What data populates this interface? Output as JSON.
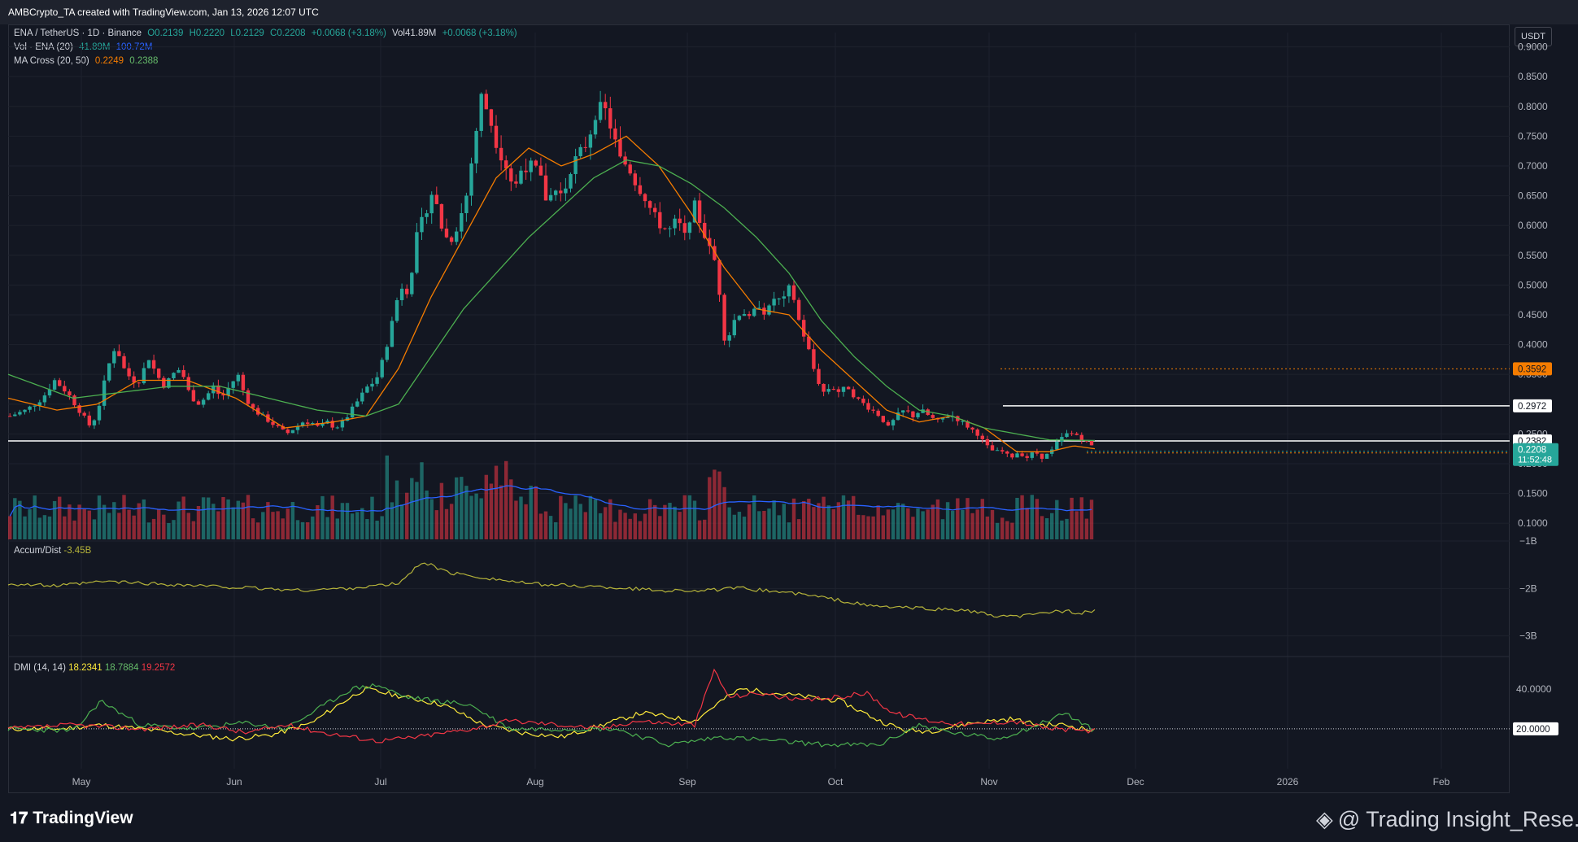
{
  "header": {
    "credit": "AMBCrypto_TA created with TradingView.com, Jan 13, 2026 12:07 UTC",
    "currency_button": "USDT"
  },
  "legend": {
    "symbol": "ENA / TetherUS · 1D · Binance",
    "ohlc": [
      "O0.2139",
      "H0.2220",
      "L0.2129",
      "C0.2208",
      "+0.0068 (+3.18%)"
    ],
    "vol_inline": "Vol41.89M",
    "vol_inline_change": "+0.0068 (+3.18%)",
    "vol_label": "Vol · ENA (20)",
    "vol_value": "41.89M",
    "vol_ma": "100.72M",
    "ma_label": "MA Cross (20, 50)",
    "ma20": "0.2249",
    "ma50": "0.2388"
  },
  "accum": {
    "label": "Accum/Dist",
    "value": "-3.45B"
  },
  "dmi": {
    "label": "DMI (14, 14)",
    "adx": "18.2341",
    "plus_di": "18.7884",
    "minus_di": "19.2572"
  },
  "footer": {
    "brand": "TradingView",
    "watermark": "@ Trading Insight_Rese..."
  },
  "colors": {
    "up": "#26a69a",
    "down": "#f23645",
    "ma20": "#f57c00",
    "ma50": "#4caf50",
    "volma": "#2962ff",
    "accum": "#b5b33a",
    "adx": "#ffeb3b"
  },
  "chart_data": [
    {
      "type": "candlestick",
      "title": "ENA / TetherUS · 1D · Binance",
      "y_ticks": [
        "0.9000",
        "0.8500",
        "0.8000",
        "0.7500",
        "0.7000",
        "0.6500",
        "0.6000",
        "0.5500",
        "0.5000",
        "0.4500",
        "0.4000",
        "0.3500",
        "0.3000",
        "0.2500",
        "0.2000",
        "0.1500",
        "0.1000"
      ],
      "x_ticks": [
        "May",
        "Jun",
        "Jul",
        "Aug",
        "Sep",
        "Oct",
        "Nov",
        "Dec",
        "2026",
        "Feb"
      ],
      "ylim": [
        0.077,
        0.924
      ],
      "price_path": [
        [
          0,
          0.28
        ],
        [
          20,
          0.29
        ],
        [
          40,
          0.31
        ],
        [
          55,
          0.34
        ],
        [
          70,
          0.32
        ],
        [
          85,
          0.29
        ],
        [
          100,
          0.26
        ],
        [
          110,
          0.3
        ],
        [
          120,
          0.36
        ],
        [
          130,
          0.4
        ],
        [
          140,
          0.36
        ],
        [
          150,
          0.34
        ],
        [
          160,
          0.34
        ],
        [
          170,
          0.38
        ],
        [
          180,
          0.35
        ],
        [
          190,
          0.33
        ],
        [
          200,
          0.35
        ],
        [
          210,
          0.36
        ],
        [
          220,
          0.32
        ],
        [
          230,
          0.3
        ],
        [
          240,
          0.31
        ],
        [
          250,
          0.33
        ],
        [
          260,
          0.31
        ],
        [
          270,
          0.33
        ],
        [
          280,
          0.35
        ],
        [
          290,
          0.31
        ],
        [
          300,
          0.29
        ],
        [
          310,
          0.28
        ],
        [
          320,
          0.27
        ],
        [
          330,
          0.26
        ],
        [
          340,
          0.25
        ],
        [
          350,
          0.26
        ],
        [
          360,
          0.27
        ],
        [
          370,
          0.27
        ],
        [
          380,
          0.26
        ],
        [
          390,
          0.27
        ],
        [
          400,
          0.26
        ],
        [
          410,
          0.27
        ],
        [
          420,
          0.29
        ],
        [
          430,
          0.31
        ],
        [
          440,
          0.33
        ],
        [
          450,
          0.34
        ],
        [
          460,
          0.38
        ],
        [
          470,
          0.44
        ],
        [
          480,
          0.5
        ],
        [
          490,
          0.49
        ],
        [
          500,
          0.58
        ],
        [
          510,
          0.62
        ],
        [
          520,
          0.66
        ],
        [
          530,
          0.6
        ],
        [
          540,
          0.57
        ],
        [
          550,
          0.6
        ],
        [
          560,
          0.64
        ],
        [
          570,
          0.73
        ],
        [
          580,
          0.82
        ],
        [
          590,
          0.78
        ],
        [
          600,
          0.73
        ],
        [
          610,
          0.7
        ],
        [
          620,
          0.66
        ],
        [
          630,
          0.7
        ],
        [
          640,
          0.7
        ],
        [
          650,
          0.69
        ],
        [
          660,
          0.64
        ],
        [
          670,
          0.66
        ],
        [
          680,
          0.65
        ],
        [
          690,
          0.7
        ],
        [
          700,
          0.72
        ],
        [
          710,
          0.74
        ],
        [
          720,
          0.79
        ],
        [
          730,
          0.8
        ],
        [
          740,
          0.76
        ],
        [
          750,
          0.71
        ],
        [
          760,
          0.7
        ],
        [
          770,
          0.67
        ],
        [
          780,
          0.65
        ],
        [
          790,
          0.62
        ],
        [
          800,
          0.6
        ],
        [
          810,
          0.59
        ],
        [
          820,
          0.61
        ],
        [
          830,
          0.58
        ],
        [
          840,
          0.64
        ],
        [
          850,
          0.6
        ],
        [
          860,
          0.56
        ],
        [
          870,
          0.53
        ],
        [
          875,
          0.44
        ],
        [
          880,
          0.4
        ],
        [
          890,
          0.44
        ],
        [
          900,
          0.46
        ],
        [
          910,
          0.44
        ],
        [
          920,
          0.47
        ],
        [
          930,
          0.45
        ],
        [
          940,
          0.48
        ],
        [
          950,
          0.47
        ],
        [
          960,
          0.5
        ],
        [
          970,
          0.44
        ],
        [
          980,
          0.4
        ],
        [
          990,
          0.35
        ],
        [
          1000,
          0.32
        ],
        [
          1010,
          0.33
        ],
        [
          1020,
          0.32
        ],
        [
          1030,
          0.33
        ],
        [
          1040,
          0.31
        ],
        [
          1050,
          0.3
        ],
        [
          1060,
          0.29
        ],
        [
          1070,
          0.28
        ],
        [
          1080,
          0.26
        ],
        [
          1090,
          0.28
        ],
        [
          1100,
          0.29
        ],
        [
          1110,
          0.28
        ],
        [
          1120,
          0.29
        ],
        [
          1130,
          0.28
        ],
        [
          1140,
          0.27
        ],
        [
          1150,
          0.28
        ],
        [
          1160,
          0.28
        ],
        [
          1170,
          0.27
        ],
        [
          1180,
          0.26
        ],
        [
          1190,
          0.25
        ],
        [
          1200,
          0.23
        ],
        [
          1210,
          0.22
        ],
        [
          1220,
          0.22
        ],
        [
          1230,
          0.21
        ],
        [
          1240,
          0.22
        ],
        [
          1250,
          0.21
        ],
        [
          1260,
          0.22
        ],
        [
          1270,
          0.21
        ],
        [
          1280,
          0.22
        ],
        [
          1290,
          0.24
        ],
        [
          1300,
          0.25
        ],
        [
          1310,
          0.25
        ],
        [
          1320,
          0.24
        ],
        [
          1330,
          0.23
        ],
        [
          1336,
          0.22
        ]
      ],
      "ma20_path": [
        [
          0,
          0.31
        ],
        [
          60,
          0.29
        ],
        [
          110,
          0.3
        ],
        [
          160,
          0.34
        ],
        [
          220,
          0.34
        ],
        [
          280,
          0.31
        ],
        [
          340,
          0.26
        ],
        [
          400,
          0.27
        ],
        [
          440,
          0.28
        ],
        [
          480,
          0.36
        ],
        [
          520,
          0.48
        ],
        [
          560,
          0.58
        ],
        [
          600,
          0.68
        ],
        [
          640,
          0.73
        ],
        [
          680,
          0.7
        ],
        [
          720,
          0.72
        ],
        [
          760,
          0.75
        ],
        [
          800,
          0.7
        ],
        [
          840,
          0.62
        ],
        [
          880,
          0.53
        ],
        [
          920,
          0.46
        ],
        [
          960,
          0.45
        ],
        [
          1000,
          0.39
        ],
        [
          1040,
          0.34
        ],
        [
          1080,
          0.29
        ],
        [
          1120,
          0.27
        ],
        [
          1160,
          0.28
        ],
        [
          1200,
          0.26
        ],
        [
          1240,
          0.22
        ],
        [
          1280,
          0.22
        ],
        [
          1310,
          0.23
        ],
        [
          1336,
          0.225
        ]
      ],
      "ma50_path": [
        [
          0,
          0.35
        ],
        [
          80,
          0.31
        ],
        [
          140,
          0.32
        ],
        [
          200,
          0.33
        ],
        [
          260,
          0.33
        ],
        [
          320,
          0.31
        ],
        [
          380,
          0.29
        ],
        [
          440,
          0.28
        ],
        [
          480,
          0.3
        ],
        [
          520,
          0.38
        ],
        [
          560,
          0.46
        ],
        [
          600,
          0.52
        ],
        [
          640,
          0.58
        ],
        [
          680,
          0.63
        ],
        [
          720,
          0.68
        ],
        [
          760,
          0.71
        ],
        [
          800,
          0.7
        ],
        [
          840,
          0.67
        ],
        [
          880,
          0.63
        ],
        [
          920,
          0.58
        ],
        [
          960,
          0.52
        ],
        [
          1000,
          0.44
        ],
        [
          1040,
          0.38
        ],
        [
          1080,
          0.33
        ],
        [
          1120,
          0.29
        ],
        [
          1160,
          0.28
        ],
        [
          1200,
          0.26
        ],
        [
          1240,
          0.25
        ],
        [
          1280,
          0.24
        ],
        [
          1336,
          0.239
        ]
      ],
      "horizontal_levels": [
        {
          "value": "0.3592",
          "style": "dotted",
          "color": "#f57c00"
        },
        {
          "value": "0.2972",
          "style": "solid",
          "color": "#ffffff"
        },
        {
          "value": "0.2382",
          "style": "solid",
          "color": "#ffffff"
        },
        {
          "value": "0.2180",
          "style": "dotted",
          "color": "#f57c00"
        }
      ],
      "last_price": {
        "value": "0.2208",
        "countdown": "11:52:48"
      }
    },
    {
      "type": "line",
      "title": "Accum/Dist",
      "y_ticks": [
        "-1B",
        "-2B",
        "-3B"
      ],
      "ylim": [
        -1,
        -3.4
      ]
    },
    {
      "type": "line",
      "title": "DMI (14, 14)",
      "y_ticks": [
        "40.0000",
        "20.0000"
      ],
      "ylim": [
        0,
        55
      ]
    }
  ]
}
